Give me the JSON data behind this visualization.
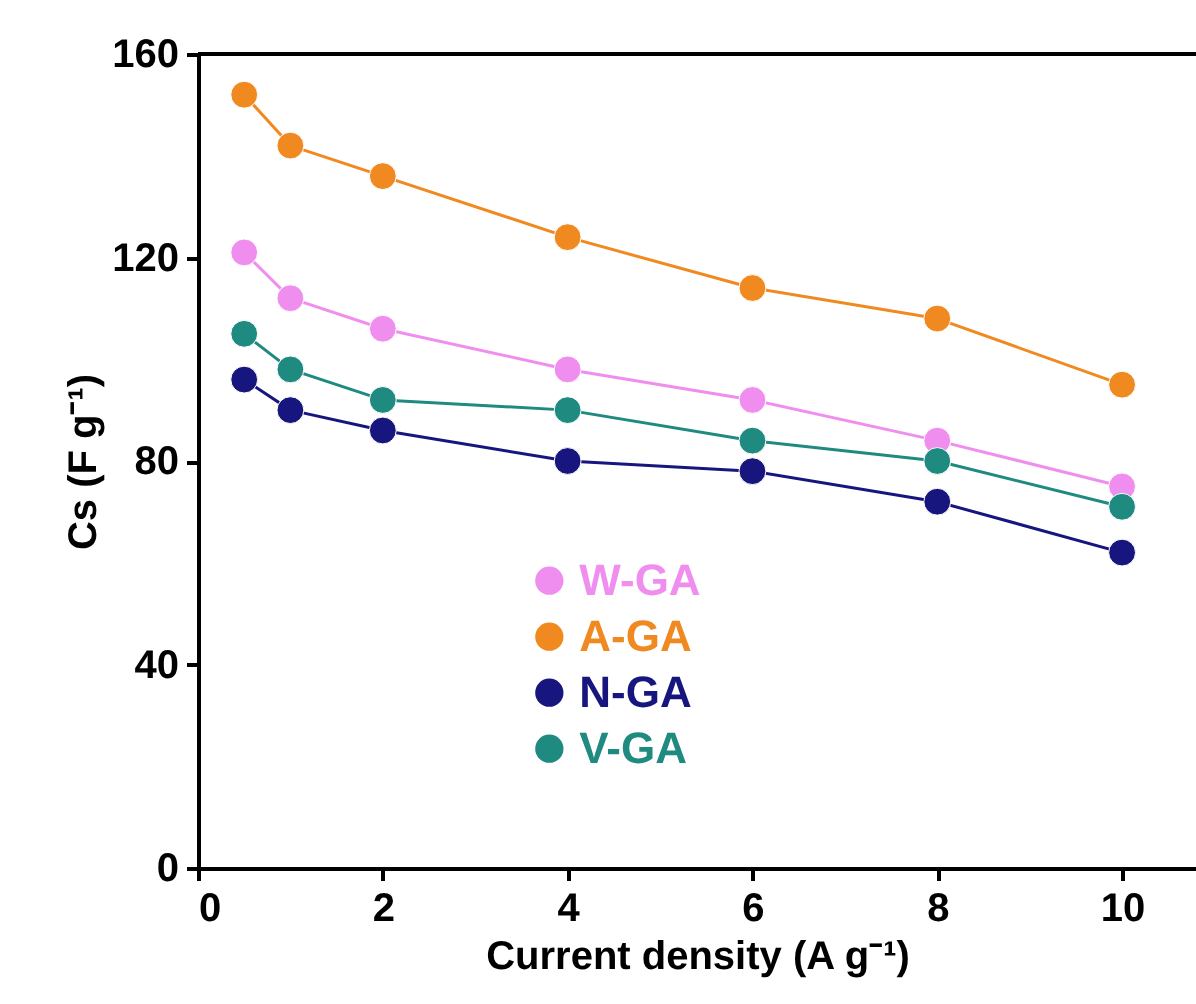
{
  "chart_data": {
    "type": "line",
    "xlabel": "Current density (A g⁻¹)",
    "ylabel": "Cs (F g⁻¹)",
    "x": [
      0.5,
      1,
      2,
      4,
      6,
      8,
      10
    ],
    "series": [
      {
        "name": "W-GA",
        "color": "#f08ef0",
        "values": [
          121,
          112,
          106,
          98,
          92,
          84,
          75
        ]
      },
      {
        "name": "A-GA",
        "color": "#f0891f",
        "values": [
          152,
          142,
          136,
          124,
          114,
          108,
          95
        ]
      },
      {
        "name": "N-GA",
        "color": "#16167e",
        "values": [
          96,
          90,
          86,
          80,
          78,
          72,
          62
        ]
      },
      {
        "name": "V-GA",
        "color": "#1e8a80",
        "values": [
          105,
          98,
          92,
          90,
          84,
          80,
          71
        ]
      }
    ],
    "xlim": [
      0,
      10.8
    ],
    "xticks": [
      0,
      2,
      4,
      6,
      8,
      10
    ],
    "ylim": [
      0,
      160
    ],
    "yticks": [
      0,
      40,
      80,
      120,
      160
    ],
    "grid": false,
    "legend": "left",
    "marker": "circle",
    "line_style": "solid"
  }
}
